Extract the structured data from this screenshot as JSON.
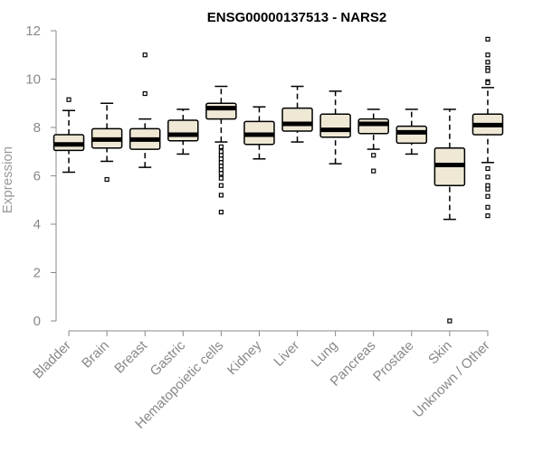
{
  "chart_data": {
    "type": "boxplot",
    "title": "ENSG00000137513 - NARS2",
    "xlabel": "",
    "ylabel": "Expression",
    "ylim": [
      0,
      12
    ],
    "yticks": [
      0,
      2,
      4,
      6,
      8,
      10,
      12
    ],
    "grid": false,
    "colors": {
      "box_fill": "#EEE8D5",
      "box_stroke": "#000000",
      "axis": "#888888"
    },
    "categories": [
      "Bladder",
      "Brain",
      "Breast",
      "Gastric",
      "Hematopoietic cells",
      "Kidney",
      "Liver",
      "Lung",
      "Pancreas",
      "Prostate",
      "Skin",
      "Unknown / Other"
    ],
    "boxes": [
      {
        "min": 6.15,
        "q1": 7.05,
        "median": 7.3,
        "q3": 7.7,
        "max": 8.7,
        "outliers": [
          9.15
        ]
      },
      {
        "min": 6.6,
        "q1": 7.15,
        "median": 7.5,
        "q3": 7.95,
        "max": 9.0,
        "outliers": [
          5.85
        ]
      },
      {
        "min": 6.35,
        "q1": 7.1,
        "median": 7.5,
        "q3": 7.95,
        "max": 8.35,
        "outliers": [
          9.4,
          11.0
        ]
      },
      {
        "min": 6.9,
        "q1": 7.45,
        "median": 7.7,
        "q3": 8.3,
        "max": 8.75,
        "outliers": []
      },
      {
        "min": 7.4,
        "q1": 8.35,
        "median": 8.8,
        "q3": 9.0,
        "max": 9.7,
        "outliers": [
          7.2,
          7.0,
          6.85,
          6.7,
          6.55,
          6.4,
          6.25,
          6.1,
          5.9,
          5.6,
          5.2,
          4.5
        ]
      },
      {
        "min": 6.7,
        "q1": 7.3,
        "median": 7.7,
        "q3": 8.25,
        "max": 8.85,
        "outliers": []
      },
      {
        "min": 7.4,
        "q1": 7.85,
        "median": 8.15,
        "q3": 8.8,
        "max": 9.7,
        "outliers": []
      },
      {
        "min": 6.5,
        "q1": 7.6,
        "median": 7.9,
        "q3": 8.55,
        "max": 9.5,
        "outliers": []
      },
      {
        "min": 7.1,
        "q1": 7.75,
        "median": 8.15,
        "q3": 8.35,
        "max": 8.75,
        "outliers": [
          6.85,
          6.2
        ]
      },
      {
        "min": 6.9,
        "q1": 7.35,
        "median": 7.8,
        "q3": 8.05,
        "max": 8.75,
        "outliers": []
      },
      {
        "min": 4.2,
        "q1": 5.6,
        "median": 6.45,
        "q3": 7.15,
        "max": 8.75,
        "outliers": [
          0.0
        ]
      },
      {
        "min": 6.55,
        "q1": 7.7,
        "median": 8.1,
        "q3": 8.55,
        "max": 9.65,
        "outliers": [
          11.65,
          11.0,
          10.7,
          10.45,
          10.35,
          9.9,
          9.85,
          6.3,
          5.95,
          5.6,
          5.45,
          5.15,
          4.7,
          4.35
        ]
      }
    ]
  }
}
